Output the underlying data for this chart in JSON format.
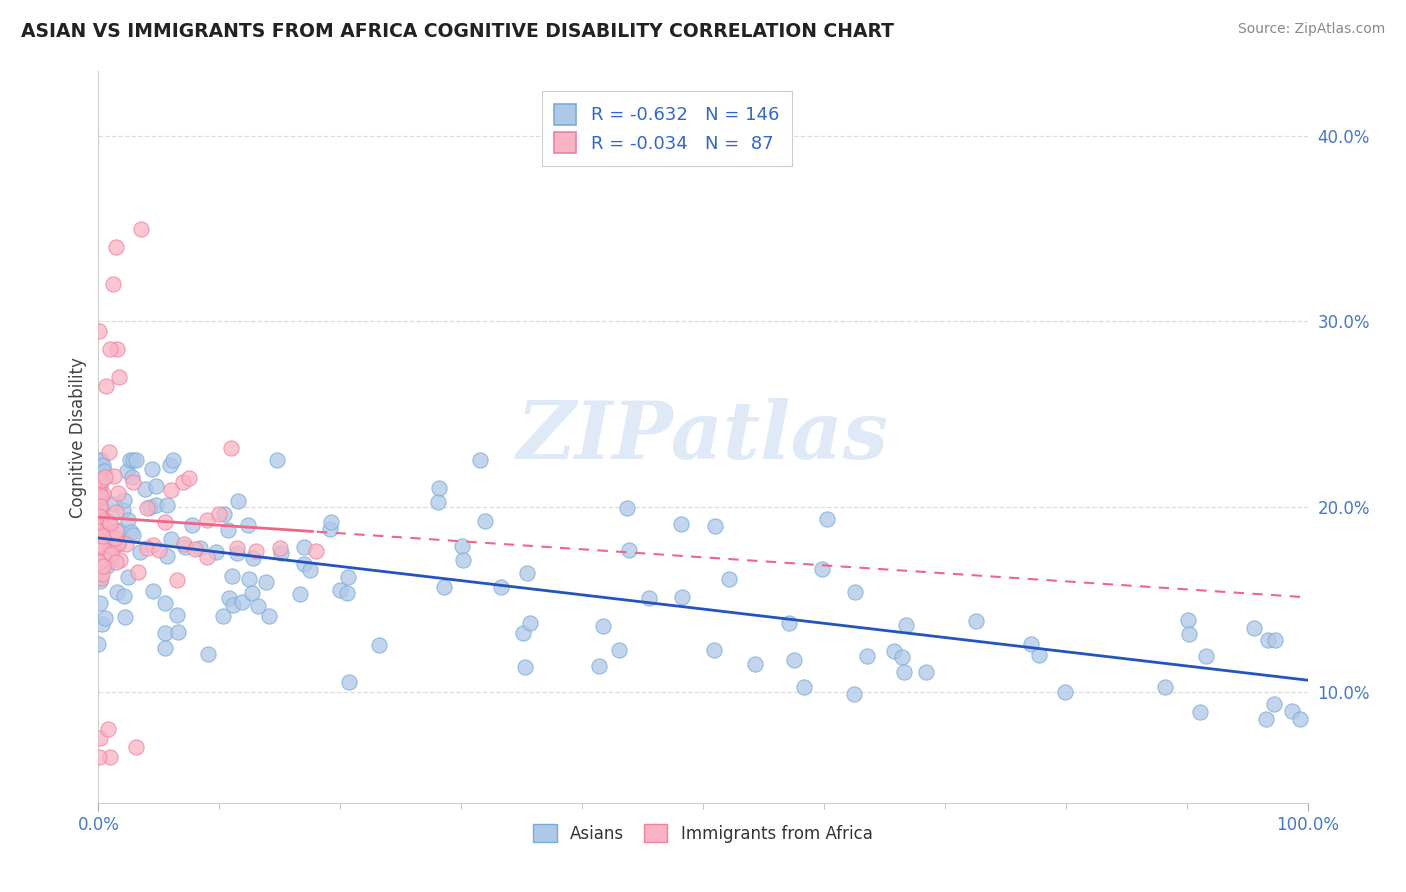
{
  "title": "ASIAN VS IMMIGRANTS FROM AFRICA COGNITIVE DISABILITY CORRELATION CHART",
  "source_text": "Source: ZipAtlas.com",
  "ylabel": "Cognitive Disability",
  "xlim": [
    0.0,
    1.0
  ],
  "ylim": [
    0.04,
    0.435
  ],
  "yticks": [
    0.1,
    0.2,
    0.3,
    0.4
  ],
  "ytick_labels": [
    "10.0%",
    "20.0%",
    "30.0%",
    "40.0%"
  ],
  "xtick_labels": [
    "0.0%",
    "100.0%"
  ],
  "asian_face_color": "#aec8e8",
  "african_face_color": "#f8b4c4",
  "asian_edge_color": "#7aacd8",
  "african_edge_color": "#f080a0",
  "asian_R": -0.632,
  "asian_N": 146,
  "african_R": -0.034,
  "african_N": 87,
  "grid_color": "#dddddd",
  "background_color": "#ffffff",
  "watermark_text": "ZIPatlas",
  "asian_line_color": "#2255bb",
  "african_line_color": "#ee6688",
  "title_color": "#222222",
  "source_color": "#888888",
  "axis_label_color": "#4477cc",
  "legend_text_color": "#3366cc"
}
